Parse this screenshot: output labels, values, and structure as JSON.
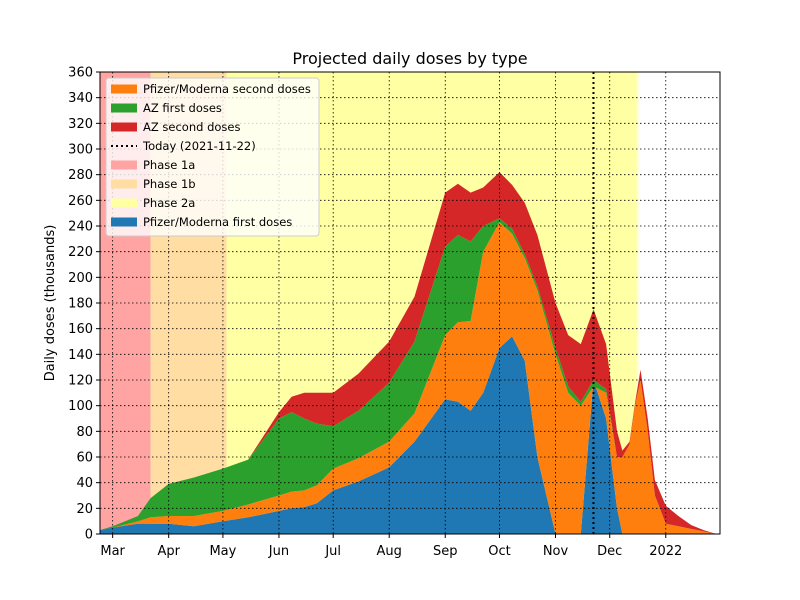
{
  "chart_data": {
    "type": "area",
    "title": "Projected daily doses by type",
    "xlabel": "",
    "ylabel": "Daily doses (thousands)",
    "ylim": [
      0,
      360
    ],
    "yticks": [
      0,
      20,
      40,
      60,
      80,
      100,
      120,
      140,
      160,
      180,
      200,
      220,
      240,
      260,
      280,
      300,
      320,
      340,
      360
    ],
    "xlim": [
      "2021-02-22",
      "2022-01-31"
    ],
    "xticks": [
      {
        "date": "2021-03-01",
        "label": "Mar"
      },
      {
        "date": "2021-04-01",
        "label": "Apr"
      },
      {
        "date": "2021-05-01",
        "label": "May"
      },
      {
        "date": "2021-06-01",
        "label": "Jun"
      },
      {
        "date": "2021-07-01",
        "label": "Jul"
      },
      {
        "date": "2021-08-01",
        "label": "Aug"
      },
      {
        "date": "2021-09-01",
        "label": "Sep"
      },
      {
        "date": "2021-10-01",
        "label": "Oct"
      },
      {
        "date": "2021-11-01",
        "label": "Nov"
      },
      {
        "date": "2021-12-01",
        "label": "Dec"
      },
      {
        "date": "2022-01-01",
        "label": "2022"
      }
    ],
    "grid": true,
    "legend_position": "top-left",
    "today": {
      "date": "2021-11-22",
      "label": "Today (2021-11-22)"
    },
    "phases": [
      {
        "name": "Phase 1a",
        "start": "2021-02-22",
        "end": "2021-03-22",
        "color": "#ffa3a3"
      },
      {
        "name": "Phase 1b",
        "start": "2021-03-22",
        "end": "2021-05-03",
        "color": "#ffdda3"
      },
      {
        "name": "Phase 2a",
        "start": "2021-05-03",
        "end": "2021-12-15",
        "color": "#ffffa3",
        "fade_end": "2021-12-18"
      }
    ],
    "dates": [
      "2021-02-22",
      "2021-03-01",
      "2021-03-15",
      "2021-03-22",
      "2021-04-01",
      "2021-04-15",
      "2021-05-01",
      "2021-05-15",
      "2021-06-01",
      "2021-06-08",
      "2021-06-15",
      "2021-06-22",
      "2021-07-01",
      "2021-07-15",
      "2021-08-01",
      "2021-08-15",
      "2021-09-01",
      "2021-09-08",
      "2021-09-15",
      "2021-09-22",
      "2021-10-01",
      "2021-10-08",
      "2021-10-15",
      "2021-10-22",
      "2021-11-01",
      "2021-11-08",
      "2021-11-15",
      "2021-11-22",
      "2021-11-29",
      "2021-12-05",
      "2021-12-08",
      "2021-12-12",
      "2021-12-15",
      "2021-12-18",
      "2021-12-22",
      "2021-12-26",
      "2022-01-01",
      "2022-01-08",
      "2022-01-15",
      "2022-01-22",
      "2022-01-29"
    ],
    "series": [
      {
        "name": "Pfizer/Moderna first doses",
        "color": "#1f77b4",
        "values": [
          3,
          5,
          8,
          8,
          8,
          6,
          10,
          13,
          18,
          20,
          21,
          24,
          34,
          41,
          52,
          72,
          105,
          103,
          96,
          110,
          145,
          154,
          135,
          60,
          0,
          0,
          0,
          120,
          90,
          20,
          0,
          0,
          0,
          0,
          0,
          0,
          0,
          0,
          0,
          0,
          0
        ]
      },
      {
        "name": "Pfizer/Moderna second doses",
        "color": "#ff7f0e",
        "values": [
          0,
          0,
          2,
          5,
          6,
          8,
          8,
          10,
          12,
          13,
          13,
          14,
          17,
          18,
          20,
          22,
          50,
          62,
          70,
          110,
          98,
          80,
          80,
          130,
          140,
          110,
          100,
          -5,
          20,
          40,
          60,
          70,
          100,
          120,
          80,
          30,
          8,
          6,
          4,
          2,
          0
        ]
      },
      {
        "name": "AZ first doses",
        "color": "#2ca02c",
        "values": [
          0,
          1,
          4,
          15,
          25,
          30,
          33,
          35,
          60,
          62,
          56,
          48,
          33,
          37,
          46,
          56,
          69,
          68,
          62,
          20,
          3,
          4,
          3,
          3,
          5,
          5,
          3,
          5,
          3,
          0,
          0,
          0,
          0,
          0,
          0,
          0,
          0,
          0,
          0,
          0,
          0
        ]
      },
      {
        "name": "AZ second doses",
        "color": "#d62728",
        "values": [
          0,
          0,
          0,
          0,
          0,
          0,
          0,
          0,
          5,
          12,
          20,
          24,
          26,
          29,
          32,
          35,
          42,
          40,
          38,
          30,
          36,
          34,
          40,
          40,
          35,
          40,
          45,
          55,
          35,
          20,
          5,
          2,
          2,
          8,
          10,
          12,
          14,
          8,
          3,
          1,
          0
        ]
      }
    ]
  },
  "legend": {
    "items": [
      {
        "label": "Pfizer/Moderna second doses",
        "kind": "patch",
        "color": "#ff7f0e"
      },
      {
        "label": "AZ first doses",
        "kind": "patch",
        "color": "#2ca02c"
      },
      {
        "label": "AZ second doses",
        "kind": "patch",
        "color": "#d62728"
      },
      {
        "label": "Today (2021-11-22)",
        "kind": "dotted-line",
        "color": "#000000"
      },
      {
        "label": "Phase 1a",
        "kind": "patch",
        "color": "#ffa3a3"
      },
      {
        "label": "Phase 1b",
        "kind": "patch",
        "color": "#ffdda3"
      },
      {
        "label": "Phase 2a",
        "kind": "patch",
        "color": "#ffffa3"
      },
      {
        "label": "Pfizer/Moderna first doses",
        "kind": "patch",
        "color": "#1f77b4"
      }
    ]
  }
}
